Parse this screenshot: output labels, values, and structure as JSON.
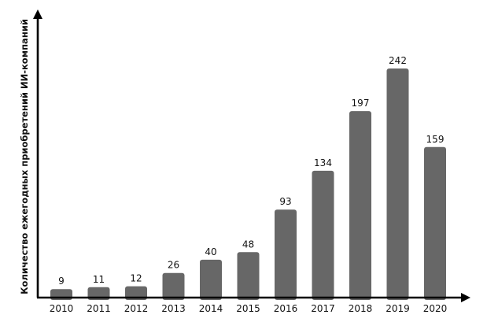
{
  "chart_data": {
    "type": "bar",
    "title": "",
    "xlabel": "",
    "ylabel": "Количество ежегодных приобретений ИИ-компаний",
    "categories": [
      "2010",
      "2011",
      "2012",
      "2013",
      "2014",
      "2015",
      "2016",
      "2017",
      "2018",
      "2019",
      "2020"
    ],
    "values": [
      9,
      11,
      12,
      26,
      40,
      48,
      93,
      134,
      197,
      242,
      159
    ],
    "data_labels": [
      "9",
      "11",
      "12",
      "26",
      "40",
      "48",
      "93",
      "134",
      "197",
      "242",
      "159"
    ],
    "ylim": [
      0,
      300
    ],
    "grid": false,
    "legend": "none",
    "colors": {
      "bar": "#676767",
      "axis": "#000000",
      "text": "#111111",
      "background": "#ffffff"
    }
  }
}
